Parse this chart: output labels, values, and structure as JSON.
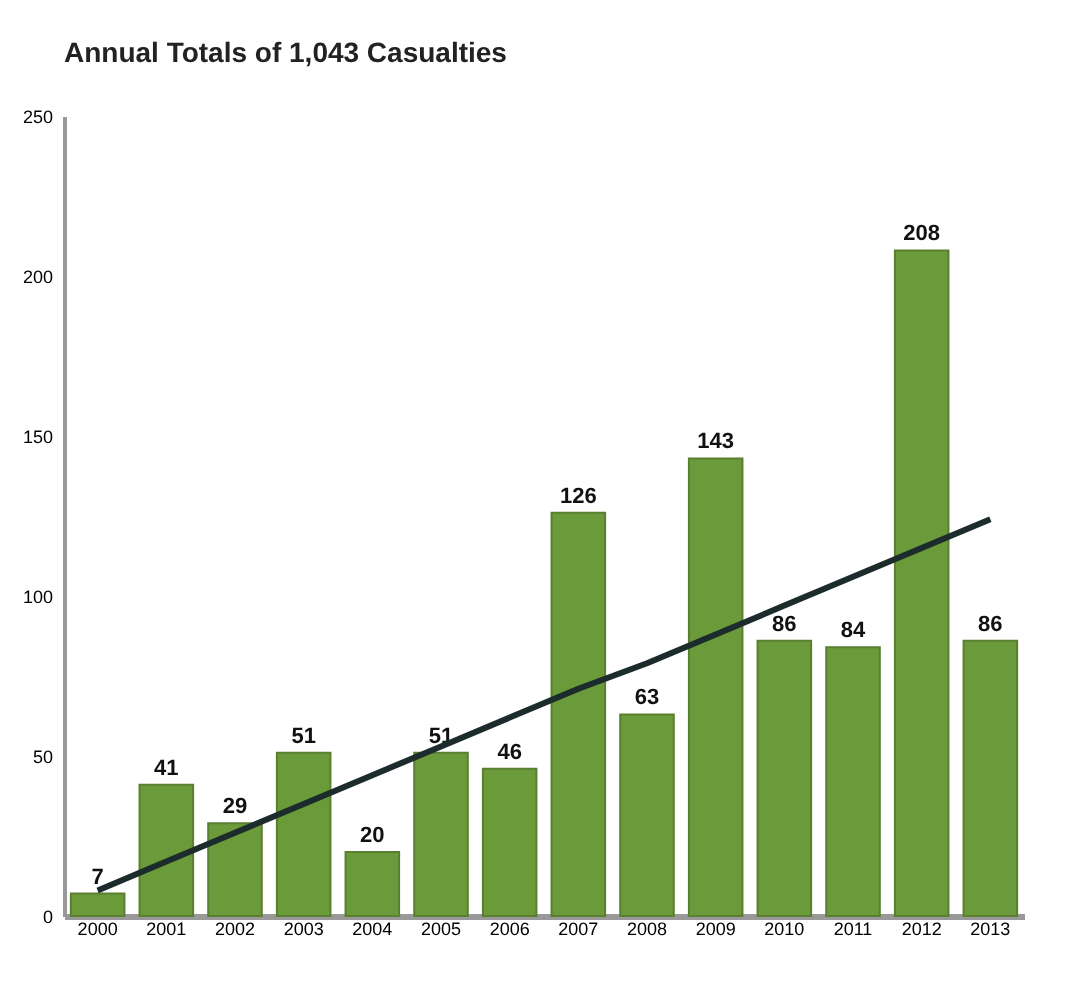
{
  "chart_data": {
    "type": "bar",
    "title": "Annual Totals of 1,043 Casualties",
    "categories": [
      "2000",
      "2001",
      "2002",
      "2003",
      "2004",
      "2005",
      "2006",
      "2007",
      "2008",
      "2009",
      "2010",
      "2011",
      "2012",
      "2013"
    ],
    "series": [
      {
        "color": "#6a9a3a",
        "values": [
          7,
          41,
          29,
          51,
          20,
          51,
          46,
          126,
          63,
          143,
          86,
          84,
          208,
          86
        ],
        "value_labels": [
          "7",
          "41",
          "29",
          "51",
          "20",
          "51",
          "46",
          "126",
          "63",
          "143",
          "86",
          "84",
          "208",
          "86"
        ]
      },
      {
        "type": "line",
        "color": "#1c2b2b",
        "values": [
          8,
          17,
          26,
          35,
          44,
          53,
          62,
          71,
          79,
          88,
          97,
          106,
          115,
          124
        ]
      }
    ],
    "ylim": [
      0,
      250
    ],
    "yticks": [
      0,
      50,
      100,
      150,
      200,
      250
    ],
    "grid": false
  }
}
